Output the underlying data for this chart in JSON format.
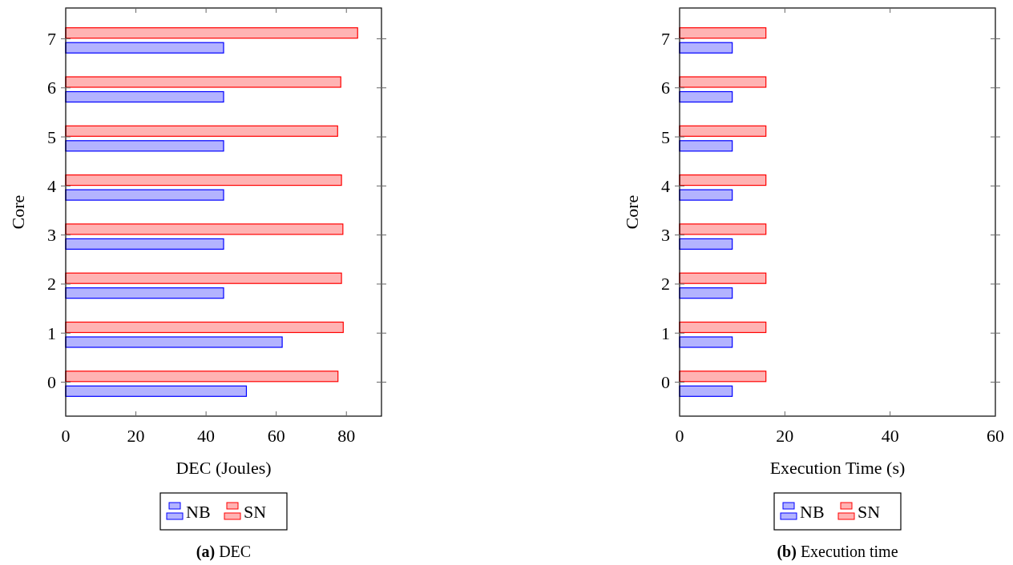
{
  "chart_data": [
    {
      "type": "bar",
      "orientation": "horizontal",
      "title": "(a) DEC",
      "xlabel": "DEC (Joules)",
      "ylabel": "Core",
      "categories": [
        "7",
        "6",
        "5",
        "4",
        "3",
        "2",
        "1",
        "0"
      ],
      "series": [
        {
          "name": "NB",
          "color": "#b3b3ff",
          "values": [
            45,
            45,
            45,
            45,
            45,
            45,
            61.7,
            51.5
          ]
        },
        {
          "name": "SN",
          "color": "#ffb3b3",
          "values": [
            83.2,
            78.4,
            77.5,
            78.6,
            79.0,
            78.6,
            79.1,
            77.6
          ]
        }
      ],
      "xlim": [
        0,
        90
      ],
      "xticks": [
        0,
        20,
        40,
        60,
        80
      ],
      "grid": false,
      "legend": "bottom"
    },
    {
      "type": "bar",
      "orientation": "horizontal",
      "title": "(b) Execution time",
      "xlabel": "Execution Time (s)",
      "ylabel": "Core",
      "categories": [
        "7",
        "6",
        "5",
        "4",
        "3",
        "2",
        "1",
        "0"
      ],
      "series": [
        {
          "name": "NB",
          "color": "#b3b3ff",
          "values": [
            10,
            10,
            10,
            10,
            10,
            10,
            10,
            10
          ]
        },
        {
          "name": "SN",
          "color": "#ffb3b3",
          "values": [
            16.4,
            16.4,
            16.4,
            16.4,
            16.4,
            16.4,
            16.4,
            16.4
          ]
        }
      ],
      "xlim": [
        0,
        60
      ],
      "xticks": [
        0,
        20,
        40,
        60
      ],
      "grid": false,
      "legend": "bottom"
    }
  ]
}
